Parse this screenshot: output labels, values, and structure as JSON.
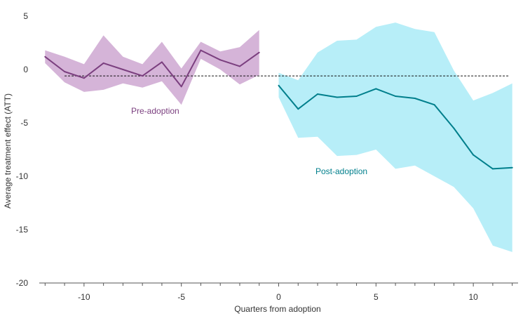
{
  "chart_data": {
    "type": "line",
    "title": "",
    "xlabel": "Quarters from adoption",
    "ylabel": "Average treatment effect (ATT)",
    "xlim": [
      -12.3,
      12.3
    ],
    "ylim": [
      -20,
      5
    ],
    "x_ticks": [
      -10,
      -5,
      0,
      5,
      10
    ],
    "y_ticks": [
      5,
      0,
      -5,
      -10,
      -15,
      -20
    ],
    "grid": false,
    "reference_line": {
      "y": -0.6,
      "x_range": [
        -11,
        11.8
      ],
      "style": "dashed"
    },
    "series": [
      {
        "name": "Pre-adoption",
        "color": "#7b3f7f",
        "band_color": "#d5b4d8",
        "x": [
          -12,
          -11,
          -10,
          -9,
          -8,
          -7,
          -6,
          -5,
          -4,
          -3,
          -2,
          -1
        ],
        "values": [
          1.2,
          -0.2,
          -0.8,
          0.6,
          0.0,
          -0.6,
          0.7,
          -1.6,
          1.8,
          0.9,
          0.3,
          1.6
        ],
        "upper": [
          1.8,
          1.2,
          0.5,
          3.2,
          1.2,
          0.5,
          2.6,
          0.1,
          2.6,
          1.7,
          2.1,
          3.7
        ],
        "lower": [
          0.6,
          -1.2,
          -2.1,
          -1.9,
          -1.3,
          -1.7,
          -1.1,
          -3.3,
          1.0,
          0.0,
          -1.4,
          -0.5
        ]
      },
      {
        "name": "Post-adoption",
        "color": "#007f8c",
        "band_color": "#b7eef8",
        "x": [
          0,
          1,
          2,
          3,
          4,
          5,
          6,
          7,
          8,
          9,
          10,
          11,
          12
        ],
        "values": [
          -1.5,
          -3.7,
          -2.3,
          -2.6,
          -2.5,
          -1.8,
          -2.5,
          -2.7,
          -3.3,
          -5.5,
          -8.0,
          -9.3,
          -9.2
        ],
        "upper": [
          -0.3,
          -1.0,
          1.6,
          2.7,
          2.8,
          4.0,
          4.4,
          3.8,
          3.5,
          -0.1,
          -2.9,
          -2.2,
          -1.3
        ],
        "lower": [
          -2.6,
          -6.4,
          -6.3,
          -8.1,
          -8.0,
          -7.5,
          -9.3,
          -9.0,
          -10.0,
          -11.0,
          -13.0,
          -16.5,
          -17.1
        ]
      }
    ]
  }
}
